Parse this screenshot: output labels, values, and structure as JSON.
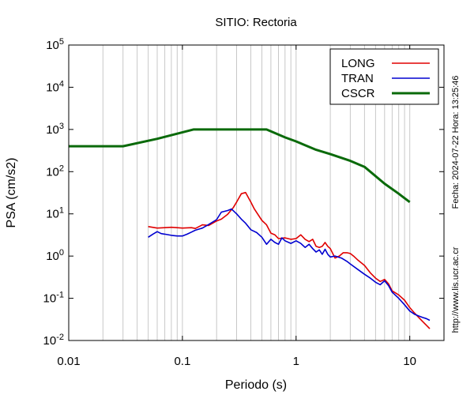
{
  "chart_data": {
    "type": "line",
    "title": "SITIO: Rectoria",
    "xlabel": "Periodo (s)",
    "ylabel": "PSA (cm/s2)",
    "xscale": "log",
    "yscale": "log",
    "xlim": [
      0.01,
      20
    ],
    "ylim": [
      0.01,
      100000
    ],
    "x_ticks": [
      {
        "value": 0.01,
        "label": "0.01"
      },
      {
        "value": 0.1,
        "label": "0.1"
      },
      {
        "value": 1,
        "label": "1"
      },
      {
        "value": 10,
        "label": "10"
      }
    ],
    "y_ticks": [
      {
        "value": 0.01,
        "base": "10",
        "exp": "-2"
      },
      {
        "value": 0.1,
        "base": "10",
        "exp": "-1"
      },
      {
        "value": 1,
        "base": "10",
        "exp": "0"
      },
      {
        "value": 10,
        "base": "10",
        "exp": "1"
      },
      {
        "value": 100,
        "base": "10",
        "exp": "2"
      },
      {
        "value": 1000,
        "base": "10",
        "exp": "3"
      },
      {
        "value": 10000,
        "base": "10",
        "exp": "4"
      },
      {
        "value": 100000,
        "base": "10",
        "exp": "5"
      }
    ],
    "grid": "vertical-minor",
    "legend_position": "top-right",
    "series": [
      {
        "name": "LONG",
        "color": "#e00000",
        "x": [
          0.05,
          0.06,
          0.07,
          0.08,
          0.1,
          0.12,
          0.13,
          0.15,
          0.17,
          0.2,
          0.22,
          0.25,
          0.28,
          0.3,
          0.33,
          0.36,
          0.4,
          0.43,
          0.5,
          0.55,
          0.6,
          0.65,
          0.7,
          0.8,
          0.9,
          1.0,
          1.1,
          1.2,
          1.3,
          1.4,
          1.5,
          1.6,
          1.7,
          1.8,
          1.9,
          2.0,
          2.2,
          2.4,
          2.6,
          2.8,
          3.0,
          3.2,
          3.5,
          4.0,
          4.5,
          5.0,
          5.5,
          6.0,
          6.5,
          7.0,
          8.0,
          9.0,
          10,
          11,
          12,
          13,
          14,
          15
        ],
        "values": [
          5.0,
          4.6,
          4.7,
          4.8,
          4.6,
          4.7,
          4.5,
          5.5,
          5.3,
          6.8,
          7.5,
          9.8,
          14,
          19,
          30,
          32,
          19,
          13,
          7,
          5.5,
          3.5,
          3.2,
          2.6,
          2.7,
          2.5,
          2.6,
          3.2,
          2.5,
          2.2,
          2.5,
          1.7,
          1.6,
          1.7,
          2.1,
          1.7,
          1.5,
          0.9,
          1.0,
          1.2,
          1.2,
          1.15,
          1.0,
          0.8,
          0.6,
          0.4,
          0.3,
          0.25,
          0.28,
          0.22,
          0.15,
          0.12,
          0.09,
          0.06,
          0.045,
          0.035,
          0.028,
          0.023,
          0.019
        ]
      },
      {
        "name": "TRAN",
        "color": "#0000d0",
        "x": [
          0.05,
          0.055,
          0.06,
          0.065,
          0.07,
          0.08,
          0.09,
          0.1,
          0.11,
          0.12,
          0.13,
          0.15,
          0.17,
          0.2,
          0.22,
          0.25,
          0.27,
          0.3,
          0.33,
          0.36,
          0.4,
          0.45,
          0.5,
          0.55,
          0.6,
          0.65,
          0.7,
          0.75,
          0.8,
          0.9,
          1.0,
          1.1,
          1.2,
          1.3,
          1.4,
          1.5,
          1.6,
          1.7,
          1.8,
          1.9,
          2.0,
          2.2,
          2.5,
          2.8,
          3.0,
          3.5,
          4.0,
          4.5,
          5.0,
          5.5,
          6.0,
          6.5,
          7.0,
          8.0,
          9.0,
          10,
          11,
          12,
          13,
          14,
          15
        ],
        "values": [
          2.8,
          3.3,
          3.8,
          3.4,
          3.3,
          3.1,
          3.0,
          3.0,
          3.3,
          3.7,
          4.1,
          4.6,
          5.6,
          7.3,
          11,
          12,
          13,
          10,
          7.5,
          6,
          4.2,
          3.6,
          2.8,
          1.9,
          2.5,
          2.1,
          1.9,
          2.7,
          2.3,
          2.0,
          2.3,
          2.0,
          1.6,
          1.9,
          1.5,
          1.25,
          1.4,
          1.1,
          1.45,
          1.1,
          0.95,
          1.0,
          0.9,
          0.75,
          0.65,
          0.48,
          0.37,
          0.3,
          0.24,
          0.21,
          0.26,
          0.2,
          0.14,
          0.1,
          0.07,
          0.05,
          0.042,
          0.038,
          0.035,
          0.033,
          0.03
        ]
      },
      {
        "name": "CSCR",
        "color": "#0a6a0a",
        "x": [
          0.01,
          0.03,
          0.06,
          0.125,
          0.55,
          0.8,
          1.0,
          1.5,
          2.0,
          3.0,
          4.0,
          6.0,
          8.0,
          10
        ],
        "values": [
          400,
          400,
          600,
          1000,
          1000,
          650,
          520,
          330,
          260,
          180,
          130,
          52,
          30,
          19
        ]
      }
    ],
    "side_annotations": {
      "date": "Fecha: 2024-07-22 Hora: 13:25:46",
      "url": "http://www.lis.ucr.ac.cr"
    }
  }
}
